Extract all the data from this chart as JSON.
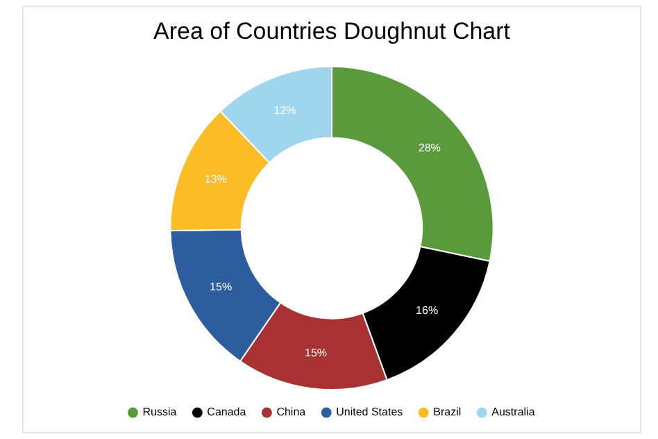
{
  "chart_data": {
    "type": "donut",
    "title": "Area of Countries Doughnut Chart",
    "categories": [
      "Russia",
      "Canada",
      "China",
      "United States",
      "Brazil",
      "Australia"
    ],
    "values": [
      28,
      16,
      15,
      15,
      13,
      12
    ],
    "value_labels": [
      "28%",
      "16%",
      "15%",
      "15%",
      "13%",
      "12%"
    ],
    "colors": [
      "#5b9a3c",
      "#000000",
      "#a83232",
      "#2e5d9f",
      "#fbbd25",
      "#9fd6ee"
    ],
    "legend": "bottom"
  }
}
